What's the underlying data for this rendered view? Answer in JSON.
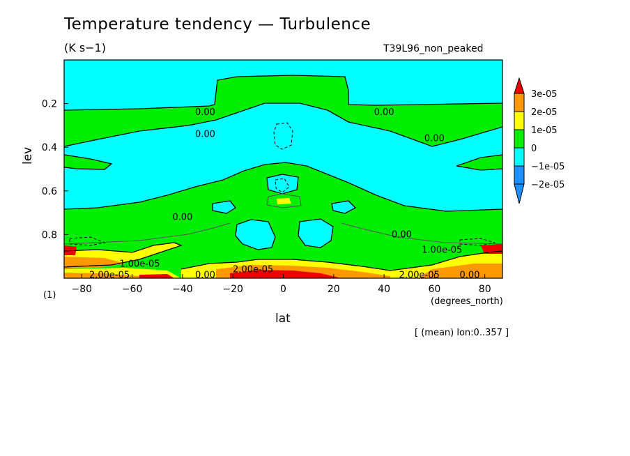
{
  "title": "Temperature tendency — Turbulence",
  "units": "(K s−1)",
  "run_label": "T39L96_non_peaked",
  "axis_units_label": "(1)",
  "x_units_label": "(degrees_north)",
  "footer_note": "[ (mean) lon:0..357 ]",
  "colors": {
    "c_neg2": "#1e90ff",
    "c_neg1": "#00ffff",
    "c_zero": "#00ee00",
    "c_pos1": "#ffff00",
    "c_pos2": "#ff9900",
    "c_pos3": "#ee0000"
  },
  "chart_data": {
    "type": "contour",
    "xlabel": "lat",
    "ylabel": "lev",
    "xlim": [
      -87,
      87
    ],
    "ylim": [
      0.0,
      1.0
    ],
    "y_inverted": true,
    "x_ticks": [
      -80,
      -60,
      -40,
      -20,
      0,
      20,
      40,
      60,
      80
    ],
    "y_ticks": [
      0.2,
      0.4,
      0.6,
      0.8
    ],
    "y_tick_labels": [
      "0.2",
      "0.4",
      "0.6",
      "0.8"
    ],
    "colorbar": {
      "labels": [
        "3e-05",
        "2e-05",
        "1e-05",
        "0",
        "−1e-05",
        "−2e-05"
      ],
      "levels": [
        -2e-05,
        -1e-05,
        0,
        1e-05,
        2e-05,
        3e-05
      ],
      "extend": "both"
    },
    "contour_labels": [
      {
        "text": "0.00",
        "lat": -31,
        "lev": 0.24
      },
      {
        "text": "0.00",
        "lat": -31,
        "lev": 0.34
      },
      {
        "text": "0.00",
        "lat": 40,
        "lev": 0.24
      },
      {
        "text": "0.00",
        "lat": 60,
        "lev": 0.36
      },
      {
        "text": "0.00",
        "lat": -40,
        "lev": 0.72
      },
      {
        "text": "0.00",
        "lat": 47,
        "lev": 0.8
      },
      {
        "text": "1.00e-05",
        "lat": -57,
        "lev": 0.935
      },
      {
        "text": "1.00e-05",
        "lat": 63,
        "lev": 0.87
      },
      {
        "text": "2.00e-05",
        "lat": -69,
        "lev": 0.985
      },
      {
        "text": "2.00e-05",
        "lat": 54,
        "lev": 0.985
      },
      {
        "text": "2.00e-05",
        "lat": -12,
        "lev": 0.96
      },
      {
        "text": "0.00",
        "lat": 74,
        "lev": 0.985
      },
      {
        "text": "0.00",
        "lat": -31,
        "lev": 0.985
      }
    ]
  }
}
